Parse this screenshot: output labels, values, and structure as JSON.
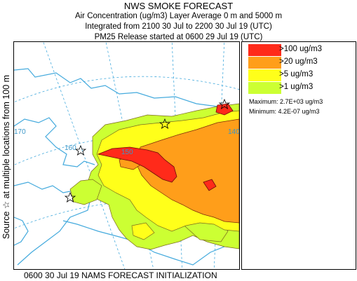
{
  "header": {
    "title": "NWS SMOKE FORECAST",
    "line2": "Air Concentration (ug/m3) Layer Average    0 m and  5000 m",
    "line3": "Integrated from 2100 30 Jul to 2200 30 Jul 19 (UTC)",
    "line4": "PM25 Release started at 0600 29 Jul 19 (UTC)"
  },
  "side_label": "Source ☆ at multiple locations from 100 m",
  "legend": {
    "items": [
      {
        "label": ">100 ug/m3",
        "color": "#ff2a1a"
      },
      {
        "label": ">20 ug/m3",
        "color": "#ff9e1a"
      },
      {
        "label": ">5 ug/m3",
        "color": "#ffff1a"
      },
      {
        "label": ">1 ug/m3",
        "color": "#ccff33"
      }
    ],
    "maximum": "Maximum: 2.7E+03 ug/m3",
    "minimum": "Minimum: 4.2E-07 ug/m3"
  },
  "map": {
    "lon_labels": [
      "170",
      "160",
      "150",
      "140"
    ],
    "coast_color": "#44aadd",
    "grid_color": "#44aadd"
  },
  "footer": "0600 30 Jul 19 NAMS FORECAST INITIALIZATION"
}
